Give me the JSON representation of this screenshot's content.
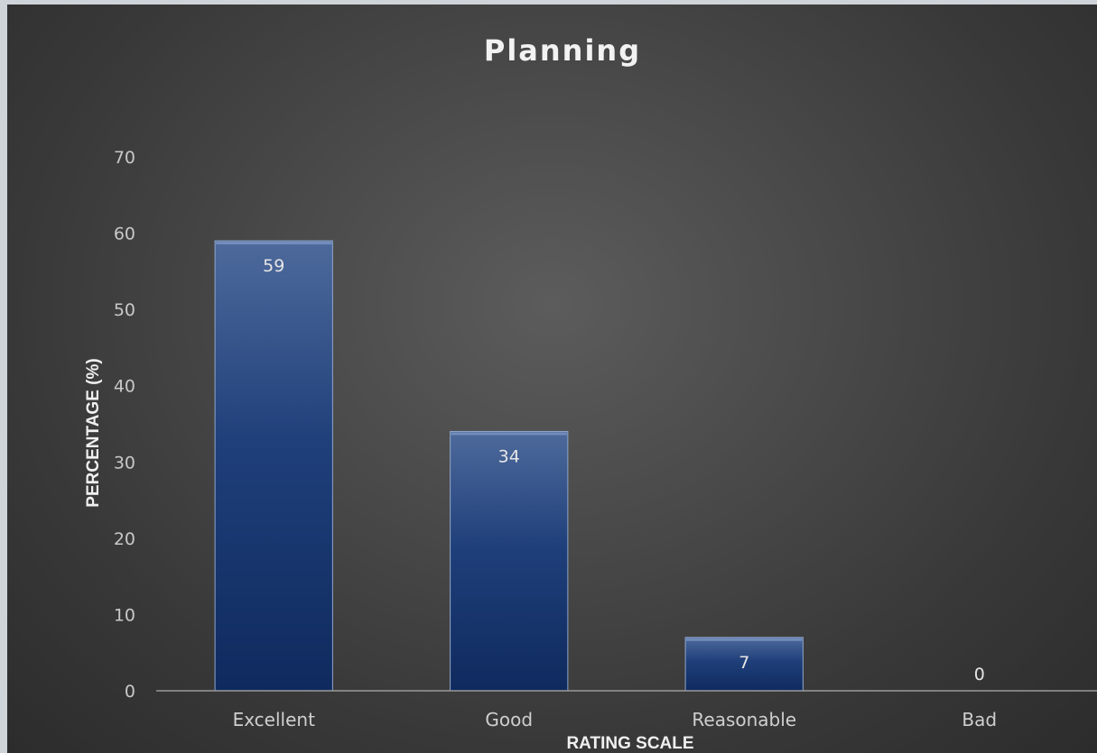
{
  "chart_data": {
    "type": "bar",
    "title": "Planning",
    "xlabel": "RATING SCALE",
    "ylabel": "PERCENTAGE (%)",
    "categories": [
      "Excellent",
      "Good",
      "Reasonable",
      "Bad"
    ],
    "values": [
      59,
      34,
      7,
      0
    ],
    "data_labels": [
      "59",
      "34",
      "7",
      "0"
    ],
    "ylim": [
      0,
      70
    ],
    "yticks": [
      "0",
      "10",
      "20",
      "30",
      "40",
      "50",
      "60",
      "70"
    ],
    "grid": false,
    "legend": "none",
    "colors": {
      "bar_top": "#4e6a9c",
      "bar_main": "#1f3f7a",
      "bar_bottom": "#0f2a5e",
      "bar_edge": "#8ea6cc",
      "axis_line": "#9a9a9a"
    }
  }
}
